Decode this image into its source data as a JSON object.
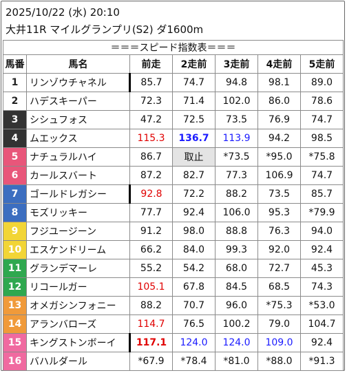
{
  "header": {
    "datetime": "2025/10/22 (水) 20:10",
    "race": "大井11R マイルグランプリ(S2) ダ1600m"
  },
  "table_title": "＝＝＝スピード指数表＝＝＝",
  "columns": [
    "馬番",
    "馬名",
    "前走",
    "2走前",
    "3走前",
    "4走前",
    "5走前"
  ],
  "colors": {
    "frame1": "#ffffff",
    "frame2": "#ffffff",
    "frame3": "#333333",
    "frame4": "#333333",
    "frame5": "#e8567a",
    "frame6": "#e8567a",
    "frame7": "#3c6ec0",
    "frame8": "#3c6ec0",
    "frame9": "#f2d536",
    "frame10": "#f2d536",
    "frame11": "#2fa84f",
    "frame12": "#2fa84f",
    "frame13": "#f09a3a",
    "frame14": "#f09a3a",
    "frame15": "#f06aa0",
    "frame16": "#f06aa0",
    "red": "#e00000",
    "blue": "#1a1aff"
  },
  "rows": [
    {
      "no": "1",
      "name": "リンゾウチャネル",
      "v": [
        "85.7",
        "74.7",
        "94.8",
        "98.1",
        "89.0"
      ]
    },
    {
      "no": "2",
      "name": "ハデスキーパー",
      "v": [
        "72.3",
        "71.4",
        "102.0",
        "86.0",
        "78.6"
      ]
    },
    {
      "no": "3",
      "name": "シシュフォス",
      "v": [
        "47.2",
        "72.5",
        "73.5",
        "76.9",
        "74.7"
      ]
    },
    {
      "no": "4",
      "name": "ムエックス",
      "v": [
        "115.3",
        "136.7",
        "113.9",
        "94.2",
        "98.5"
      ]
    },
    {
      "no": "5",
      "name": "ナチュラルハイ",
      "v": [
        "86.7",
        "取止",
        "*73.5",
        "*95.0",
        "*75.8"
      ]
    },
    {
      "no": "6",
      "name": "カールスバート",
      "v": [
        "87.2",
        "82.7",
        "77.3",
        "106.9",
        "74.7"
      ]
    },
    {
      "no": "7",
      "name": "ゴールドレガシー",
      "v": [
        "92.8",
        "72.2",
        "88.2",
        "73.5",
        "85.7"
      ]
    },
    {
      "no": "8",
      "name": "モズリッキー",
      "v": [
        "77.7",
        "92.4",
        "106.0",
        "95.3",
        "*79.9"
      ]
    },
    {
      "no": "9",
      "name": "フジユージーン",
      "v": [
        "91.2",
        "98.0",
        "88.8",
        "76.3",
        "94.0"
      ]
    },
    {
      "no": "10",
      "name": "エスケンドリーム",
      "v": [
        "66.2",
        "84.0",
        "99.3",
        "92.0",
        "92.4"
      ]
    },
    {
      "no": "11",
      "name": "グランデマーレ",
      "v": [
        "55.2",
        "54.2",
        "68.0",
        "72.7",
        "45.3"
      ]
    },
    {
      "no": "12",
      "name": "リコールガー",
      "v": [
        "105.1",
        "67.8",
        "84.5",
        "68.5",
        "74.3"
      ]
    },
    {
      "no": "13",
      "name": "オメガシンフォニー",
      "v": [
        "88.2",
        "70.7",
        "96.0",
        "*75.3",
        "*53.0"
      ]
    },
    {
      "no": "14",
      "name": "アランバローズ",
      "v": [
        "114.7",
        "76.5",
        "100.2",
        "79.0",
        "104.7"
      ]
    },
    {
      "no": "15",
      "name": "キングストンボーイ",
      "v": [
        "117.1",
        "124.0",
        "124.0",
        "109.0",
        "92.4"
      ]
    },
    {
      "no": "16",
      "name": "バハルダール",
      "v": [
        "*67.9",
        "*78.4",
        "*81.0",
        "*88.0",
        "*91.3"
      ]
    }
  ]
}
